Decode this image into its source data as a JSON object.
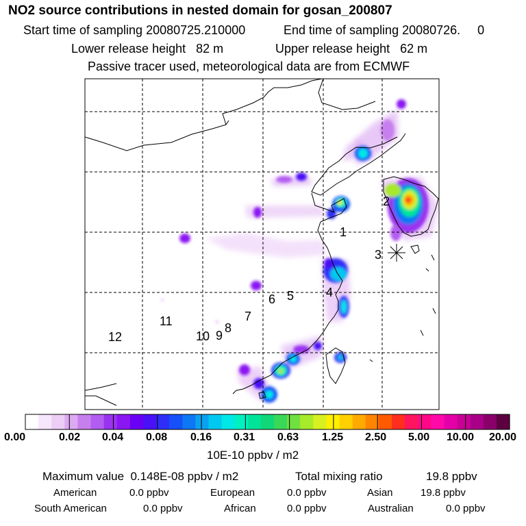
{
  "header": {
    "title": "NO2 source contributions in nested domain for gosan_200807",
    "start": "Start time of sampling 20080725.210000",
    "end": "End time of sampling 20080726.     0",
    "lower": "Lower release height   82 m",
    "upper": "Upper release height   62 m",
    "tracer": "Passive tracer used, meteorological data are from ECMWF"
  },
  "map": {
    "source_labels": [
      "1",
      "2",
      "3",
      "4",
      "5",
      "6",
      "7",
      "8",
      "9",
      "10",
      "11",
      "12"
    ],
    "receptor_marker": "star-icon"
  },
  "colorbar": {
    "ticks": [
      "0.00",
      "0.02",
      "0.04",
      "0.08",
      "0.16",
      "0.31",
      "0.63",
      "1.25",
      "2.50",
      "5.00",
      "10.00",
      "20.00"
    ],
    "colors": [
      "#ffffff",
      "#f6e6fb",
      "#eccdf6",
      "#dcaaf1",
      "#c77fee",
      "#b25cf1",
      "#9a33f0",
      "#8a16f2",
      "#6a00f3",
      "#4a10f6",
      "#2e2ef8",
      "#1550f8",
      "#0e77f4",
      "#0aa2f0",
      "#00c8f0",
      "#00e8e6",
      "#00f0c0",
      "#00e49a",
      "#10d878",
      "#3ad858",
      "#70e040",
      "#a6ea2a",
      "#d8f020",
      "#fff000",
      "#ffd000",
      "#ffaa00",
      "#ff8400",
      "#ff5a00",
      "#ff2e1e",
      "#ff1460",
      "#ff0888",
      "#ff0aa8",
      "#e400a8",
      "#c80096",
      "#aa0088",
      "#8a006a",
      "#5c0040"
    ],
    "units": "10E-10 ppbv / m2"
  },
  "stats": {
    "max": "Maximum value  0.148E-08 ppbv / m2",
    "total_label": "Total mixing ratio",
    "total_value": "19.8 ppbv",
    "regions": [
      {
        "name": "American",
        "value": "0.0 ppbv"
      },
      {
        "name": "European",
        "value": "0.0 ppbv"
      },
      {
        "name": "Asian",
        "value": "19.8 ppbv"
      },
      {
        "name": "South American",
        "value": "0.0 ppbv"
      },
      {
        "name": "African",
        "value": "0.0 ppbv"
      },
      {
        "name": "Australian",
        "value": "0.0 ppbv"
      }
    ]
  }
}
